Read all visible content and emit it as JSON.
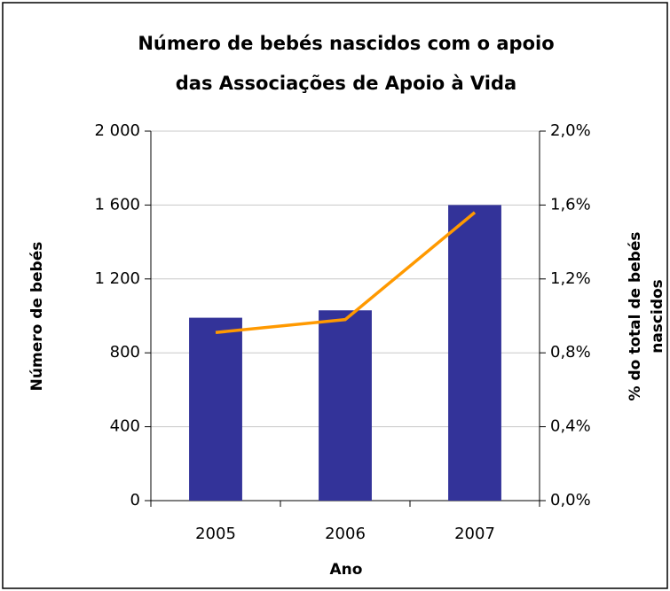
{
  "chart_data": {
    "type": "bar",
    "title": [
      "Número de bebés nascidos com o apoio",
      "das Associações de Apoio à Vida"
    ],
    "x_label": "Ano",
    "y_label": "Número de bebés",
    "y2_label": [
      "% do total de bebés",
      "nascidos"
    ],
    "categories": [
      "2005",
      "2006",
      "2007"
    ],
    "series": [
      {
        "type": "bar",
        "color": "#333399",
        "values": [
          990,
          1030,
          1600
        ]
      },
      {
        "type": "line",
        "color": "#ff9900",
        "axis": "y2",
        "values": [
          0.91,
          0.98,
          1.56
        ]
      }
    ],
    "ylim": [
      0,
      2000
    ],
    "yticks": [
      0,
      400,
      800,
      {
        "value": 1200,
        "label": "1 200"
      },
      {
        "value": 1600,
        "label": "1 600"
      },
      {
        "value": 2000,
        "label": "2 000"
      }
    ],
    "y2lim": [
      0,
      2
    ],
    "y2ticks": [
      {
        "value": 0,
        "label": "0,0%"
      },
      {
        "value": 0.4,
        "label": "0,4%"
      },
      {
        "value": 0.8,
        "label": "0,8%"
      },
      {
        "value": 1.2,
        "label": "1,2%"
      },
      {
        "value": 1.6,
        "label": "1,6%"
      },
      {
        "value": 2.0,
        "label": "2,0%"
      }
    ],
    "grid": true
  }
}
